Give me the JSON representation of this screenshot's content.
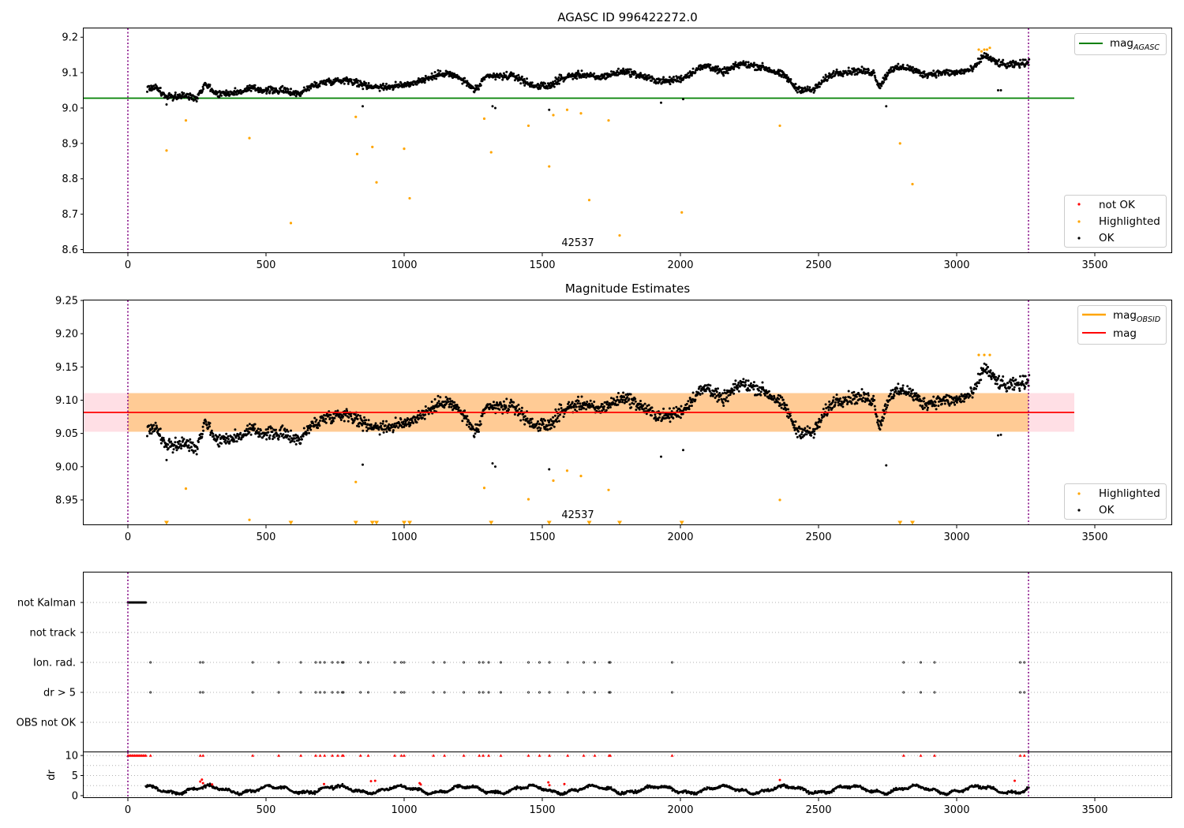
{
  "chart_data": [
    {
      "type": "scatter",
      "title": "AGASC ID 996422272.0",
      "x_ticks": [
        0,
        500,
        1000,
        1500,
        2000,
        2500,
        3000,
        3500
      ],
      "y_ticks": [
        "8.6",
        "8.7",
        "8.8",
        "8.9",
        "9.0",
        "9.1",
        "9.2"
      ],
      "xlim": [
        -160,
        3780
      ],
      "ylim": [
        8.59,
        9.225
      ],
      "annotation": "42537",
      "vlines_x": [
        0,
        3260
      ],
      "hline": {
        "name": "mag",
        "sub": "AGASC",
        "y": 9.025,
        "x": [
          -160,
          3430
        ],
        "color": "#008000"
      },
      "legend_upper": "top-right",
      "legend_lower": [
        "not OK",
        "Highlighted",
        "OK"
      ],
      "legend_lower_placement": "bottom-right",
      "series_colors": {
        "not OK": "#ff0000",
        "Highlighted": "#ffa500",
        "OK": "#000000"
      },
      "highlighted_points": [
        [
          140,
          8.88
        ],
        [
          210,
          8.965
        ],
        [
          440,
          8.915
        ],
        [
          590,
          8.675
        ],
        [
          825,
          8.975
        ],
        [
          830,
          8.87
        ],
        [
          885,
          8.89
        ],
        [
          900,
          8.79
        ],
        [
          1000,
          8.885
        ],
        [
          1020,
          8.745
        ],
        [
          1290,
          8.97
        ],
        [
          1315,
          8.875
        ],
        [
          1450,
          8.95
        ],
        [
          1525,
          8.835
        ],
        [
          1540,
          8.98
        ],
        [
          1590,
          8.995
        ],
        [
          1640,
          8.985
        ],
        [
          1670,
          8.74
        ],
        [
          1740,
          8.965
        ],
        [
          1780,
          8.64
        ],
        [
          2005,
          8.705
        ],
        [
          2360,
          8.95
        ],
        [
          2795,
          8.9
        ],
        [
          2840,
          8.785
        ],
        [
          3080,
          9.165
        ],
        [
          3090,
          9.16
        ],
        [
          3100,
          9.165
        ],
        [
          3110,
          9.165
        ],
        [
          3120,
          9.17
        ]
      ],
      "ok_trend": [
        [
          70,
          9.055
        ],
        [
          100,
          9.06
        ],
        [
          140,
          9.03
        ],
        [
          200,
          9.035
        ],
        [
          250,
          9.03
        ],
        [
          280,
          9.07
        ],
        [
          320,
          9.04
        ],
        [
          400,
          9.045
        ],
        [
          450,
          9.055
        ],
        [
          500,
          9.05
        ],
        [
          560,
          9.05
        ],
        [
          620,
          9.04
        ],
        [
          660,
          9.06
        ],
        [
          720,
          9.075
        ],
        [
          800,
          9.08
        ],
        [
          850,
          9.065
        ],
        [
          900,
          9.06
        ],
        [
          950,
          9.06
        ],
        [
          1000,
          9.065
        ],
        [
          1050,
          9.075
        ],
        [
          1150,
          9.1
        ],
        [
          1200,
          9.085
        ],
        [
          1260,
          9.05
        ],
        [
          1300,
          9.09
        ],
        [
          1400,
          9.09
        ],
        [
          1460,
          9.065
        ],
        [
          1520,
          9.06
        ],
        [
          1560,
          9.08
        ],
        [
          1600,
          9.09
        ],
        [
          1650,
          9.095
        ],
        [
          1700,
          9.085
        ],
        [
          1750,
          9.095
        ],
        [
          1800,
          9.105
        ],
        [
          1900,
          9.08
        ],
        [
          1950,
          9.075
        ],
        [
          2010,
          9.085
        ],
        [
          2060,
          9.11
        ],
        [
          2100,
          9.12
        ],
        [
          2150,
          9.1
        ],
        [
          2220,
          9.125
        ],
        [
          2300,
          9.115
        ],
        [
          2380,
          9.09
        ],
        [
          2420,
          9.055
        ],
        [
          2480,
          9.05
        ],
        [
          2530,
          9.085
        ],
        [
          2560,
          9.1
        ],
        [
          2650,
          9.105
        ],
        [
          2700,
          9.1
        ],
        [
          2720,
          9.06
        ],
        [
          2760,
          9.11
        ],
        [
          2820,
          9.115
        ],
        [
          2880,
          9.095
        ],
        [
          2950,
          9.1
        ],
        [
          3000,
          9.1
        ],
        [
          3060,
          9.11
        ],
        [
          3100,
          9.15
        ],
        [
          3140,
          9.13
        ],
        [
          3180,
          9.12
        ],
        [
          3230,
          9.125
        ],
        [
          3260,
          9.13
        ]
      ],
      "ok_outliers": [
        [
          140,
          9.01
        ],
        [
          850,
          9.005
        ],
        [
          1320,
          9.005
        ],
        [
          1330,
          9.0
        ],
        [
          1525,
          8.995
        ],
        [
          1930,
          9.015
        ],
        [
          2010,
          9.025
        ],
        [
          2745,
          9.005
        ],
        [
          3150,
          9.05
        ],
        [
          3160,
          9.05
        ]
      ]
    },
    {
      "type": "scatter",
      "title": "Magnitude Estimates",
      "x_ticks": [
        0,
        500,
        1000,
        1500,
        2000,
        2500,
        3000,
        3500
      ],
      "y_ticks": [
        "8.95",
        "9.00",
        "9.05",
        "9.10",
        "9.15",
        "9.20",
        "9.25"
      ],
      "xlim": [
        -160,
        3780
      ],
      "ylim": [
        8.912,
        9.25
      ],
      "annotation": "42537",
      "vlines_x": [
        0,
        3260
      ],
      "hline": {
        "name": "mag",
        "y": 9.081,
        "x": [
          -160,
          3430
        ],
        "color": "#ff0000"
      },
      "band": {
        "y": [
          9.052,
          9.11
        ],
        "x": [
          -160,
          3430
        ],
        "color": "#ffc0cb"
      },
      "obsid_band": {
        "name": "mag",
        "sub": "OBSID",
        "y": [
          9.052,
          9.11
        ],
        "x": [
          -160,
          3430
        ],
        "color": "#ffa500"
      },
      "legend_upper": "top-right",
      "legend_lower": [
        "Highlighted",
        "OK"
      ],
      "legend_lower_placement": "bottom-right",
      "series_colors": {
        "Highlighted": "#ffa500",
        "OK": "#000000"
      },
      "highlighted_points": [
        [
          210,
          8.967
        ],
        [
          440,
          8.92
        ],
        [
          825,
          8.977
        ],
        [
          1290,
          8.968
        ],
        [
          1450,
          8.951
        ],
        [
          1540,
          8.979
        ],
        [
          1590,
          8.994
        ],
        [
          1640,
          8.986
        ],
        [
          1740,
          8.965
        ],
        [
          2360,
          8.95
        ],
        [
          3080,
          9.168
        ],
        [
          3100,
          9.168
        ],
        [
          3120,
          9.168
        ]
      ],
      "below_range_markers_x": [
        140,
        590,
        825,
        885,
        900,
        1000,
        1020,
        1315,
        1525,
        1670,
        1780,
        2005,
        2795,
        2840
      ],
      "ok_trend_ref": 0,
      "ok_outliers": [
        [
          140,
          9.01
        ],
        [
          850,
          9.003
        ],
        [
          1320,
          9.005
        ],
        [
          1330,
          9.0
        ],
        [
          1525,
          8.996
        ],
        [
          1930,
          9.015
        ],
        [
          2010,
          9.025
        ],
        [
          2745,
          9.002
        ],
        [
          3150,
          9.047
        ],
        [
          3160,
          9.048
        ]
      ]
    },
    {
      "type": "scatter",
      "categories": [
        "not Kalman",
        "not track",
        "Ion. rad.",
        "dr > 5",
        "OBS not OK"
      ],
      "x_ticks": [
        0,
        500,
        1000,
        1500,
        2000,
        2500,
        3000,
        3500
      ],
      "xlim": [
        -160,
        3780
      ],
      "vlines_x": [
        0,
        3260
      ],
      "not_kalman_x": [
        0,
        65
      ],
      "flag_x": [
        82,
        262,
        272,
        452,
        546,
        626,
        680,
        696,
        712,
        740,
        760,
        776,
        780,
        842,
        870,
        966,
        990,
        1000,
        1106,
        1146,
        1216,
        1272,
        1286,
        1306,
        1350,
        1450,
        1490,
        1526,
        1592,
        1650,
        1690,
        1742,
        1746,
        1970,
        2808,
        2870,
        2920,
        3230,
        3245
      ]
    },
    {
      "type": "scatter",
      "ylabel": "dr",
      "y_ticks": [
        "0",
        "5",
        "10"
      ],
      "x_ticks": [
        0,
        500,
        1000,
        1500,
        2000,
        2500,
        3000,
        3500
      ],
      "xlim": [
        -160,
        3780
      ],
      "ylim": [
        -0.6,
        10.8
      ],
      "vlines_x": [
        0,
        3260
      ],
      "series_colors": {
        "not OK": "#ff0000",
        "OK": "#000000"
      },
      "red_at_10_x": [
        0,
        5,
        10,
        15,
        20,
        25,
        30,
        35,
        40,
        45,
        50,
        55,
        60,
        65,
        82,
        262,
        272,
        452,
        546,
        626,
        680,
        696,
        712,
        740,
        760,
        776,
        780,
        842,
        870,
        966,
        990,
        1000,
        1106,
        1146,
        1216,
        1272,
        1286,
        1306,
        1350,
        1450,
        1490,
        1526,
        1592,
        1650,
        1690,
        1742,
        1746,
        1970,
        2808,
        2870,
        2920,
        3230,
        3245
      ],
      "red_low": [
        [
          262,
          3.5
        ],
        [
          268,
          4.0
        ],
        [
          272,
          3.1
        ],
        [
          305,
          2.8
        ],
        [
          710,
          2.9
        ],
        [
          880,
          3.6
        ],
        [
          895,
          3.7
        ],
        [
          1056,
          3.1
        ],
        [
          1060,
          2.8
        ],
        [
          1522,
          3.3
        ],
        [
          1526,
          2.6
        ],
        [
          1580,
          2.9
        ],
        [
          2360,
          3.9
        ],
        [
          3210,
          3.7
        ]
      ]
    }
  ]
}
